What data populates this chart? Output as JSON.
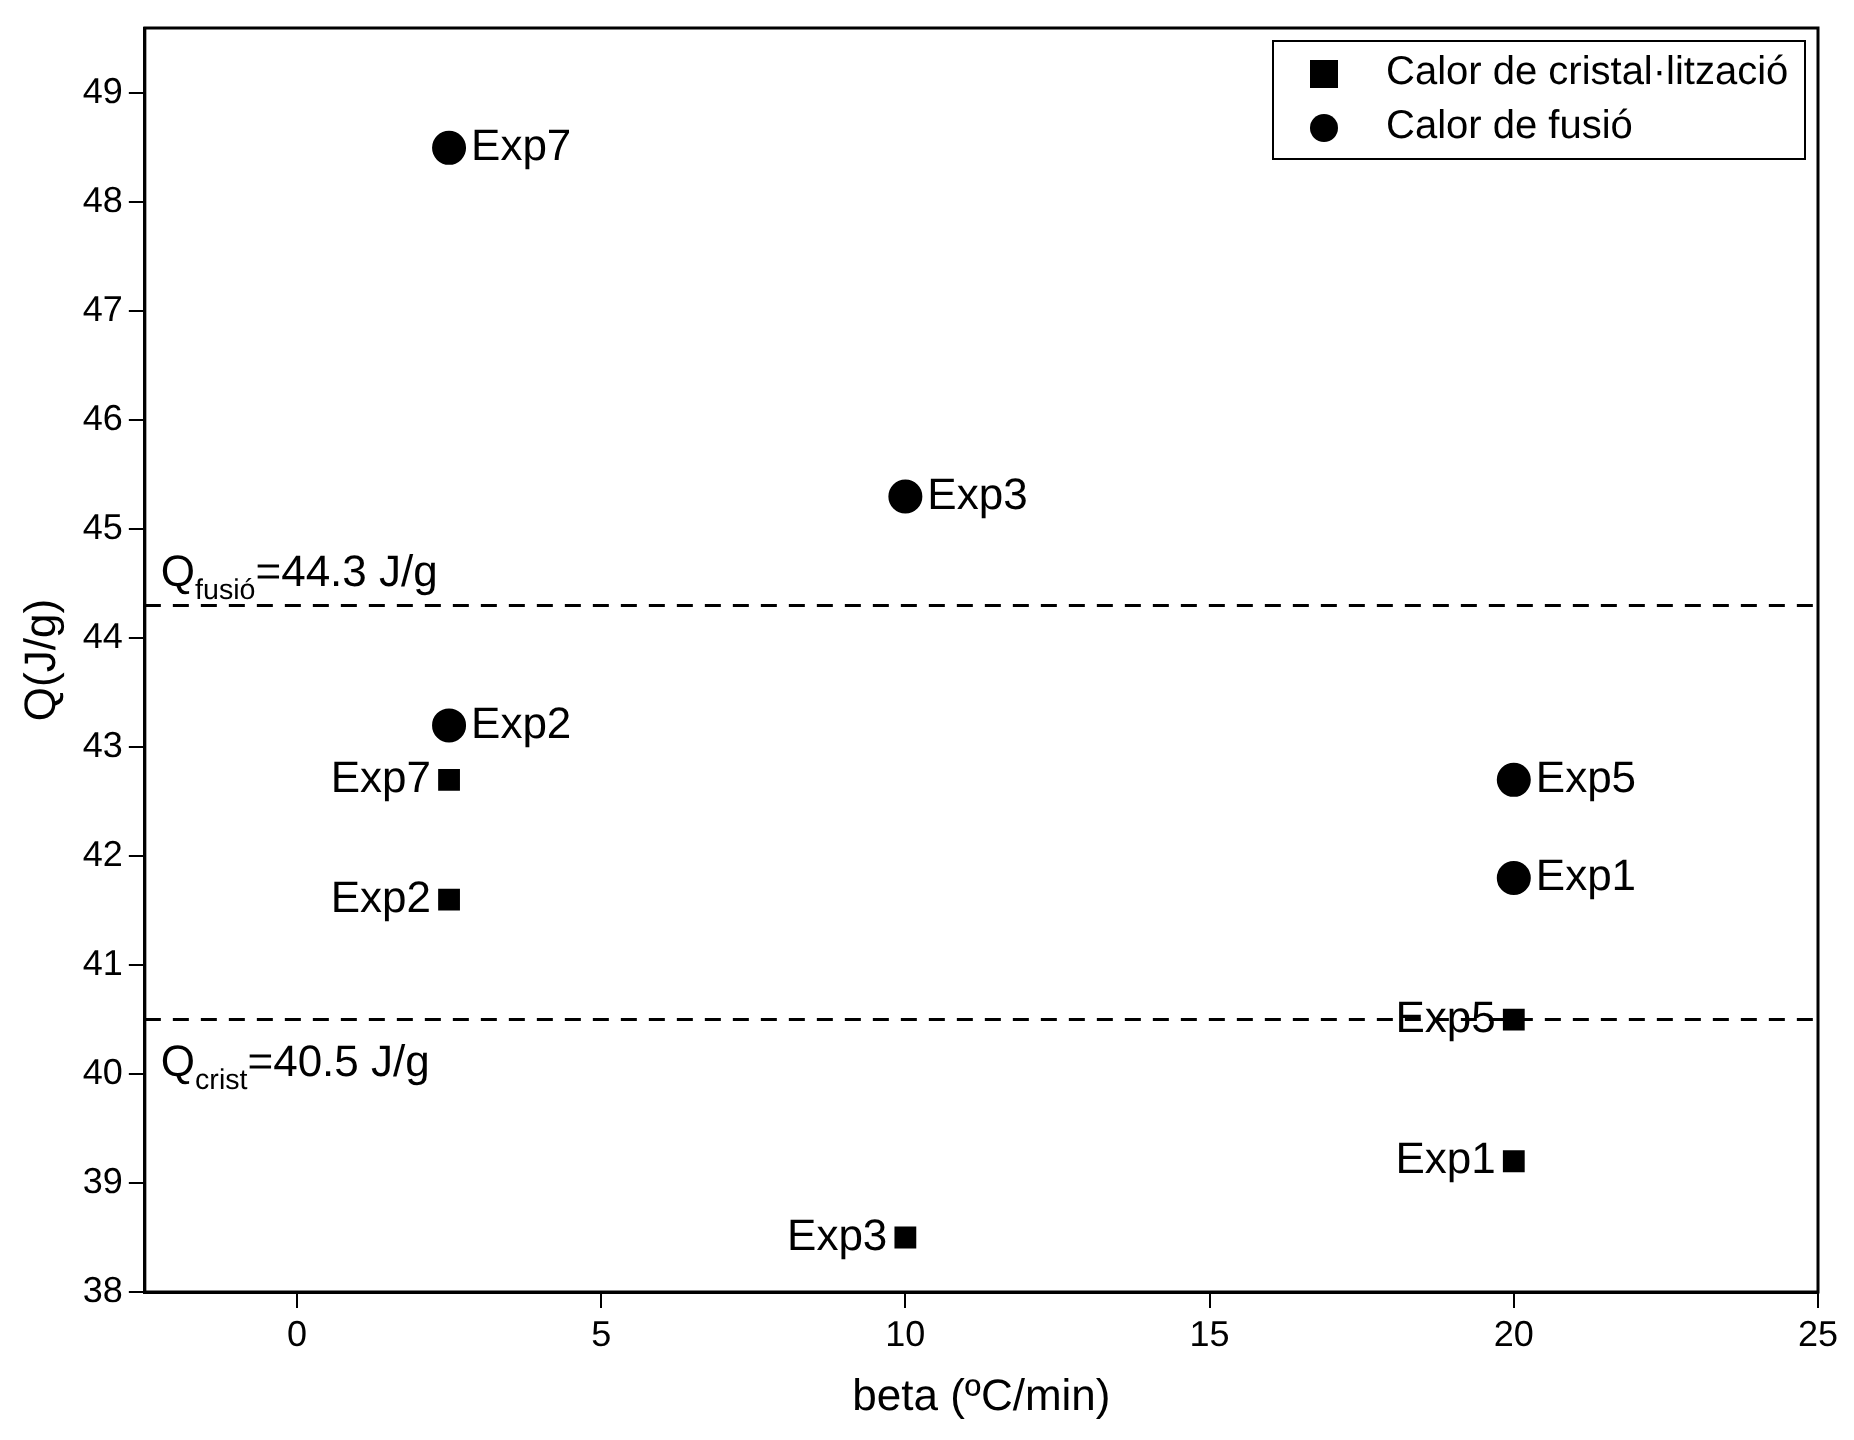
{
  "chart_data": {
    "type": "scatter",
    "xlabel": "beta (ºC/min)",
    "ylabel": "Q(J/g)",
    "xlim": [
      -2.5,
      25
    ],
    "xticks": [
      0,
      5,
      10,
      15,
      20,
      25
    ],
    "ylim": [
      38,
      49.6
    ],
    "yticks": [
      38,
      39,
      40,
      41,
      42,
      43,
      44,
      45,
      46,
      47,
      48,
      49
    ],
    "grid": false,
    "legend": "top right",
    "series": [
      {
        "name": "Calor de cristal·lització",
        "color": "#000000",
        "marker": "square",
        "x": [
          2.5,
          2.5,
          10,
          20,
          20
        ],
        "values": [
          42.7,
          41.6,
          38.5,
          40.5,
          39.2
        ]
      },
      {
        "name": "Calor de fusió",
        "color": "#000000",
        "marker": "circle",
        "x": [
          2.5,
          10,
          2.5,
          20,
          20
        ],
        "values": [
          48.5,
          45.3,
          43.2,
          42.7,
          41.8
        ]
      }
    ],
    "ref_lines": [
      {
        "axis": "y",
        "value": 44.3,
        "label": "Q$_{fusió}$=44.3 J/g",
        "color": "#000000",
        "line_style": "dashed"
      },
      {
        "axis": "y",
        "value": 40.5,
        "label": "Q$_{crist}$=40.5 J/g",
        "color": "#000000",
        "line_style": "dashed"
      }
    ],
    "annotations": [
      {
        "text": "Exp7",
        "x": 2.5,
        "y": 42.7
      },
      {
        "text": "Exp2",
        "x": 2.5,
        "y": 41.6
      },
      {
        "text": "Exp3",
        "x": 10,
        "y": 38.5
      },
      {
        "text": "Exp5",
        "x": 20,
        "y": 40.5
      },
      {
        "text": "Exp1",
        "x": 20,
        "y": 39.2
      },
      {
        "text": "Exp7",
        "x": 2.5,
        "y": 48.5
      },
      {
        "text": "Exp3",
        "x": 10,
        "y": 45.3
      },
      {
        "text": "Exp2",
        "x": 2.5,
        "y": 43.2
      },
      {
        "text": "Exp5",
        "x": 20,
        "y": 42.7
      },
      {
        "text": "Exp1",
        "x": 20,
        "y": 41.8
      }
    ]
  }
}
